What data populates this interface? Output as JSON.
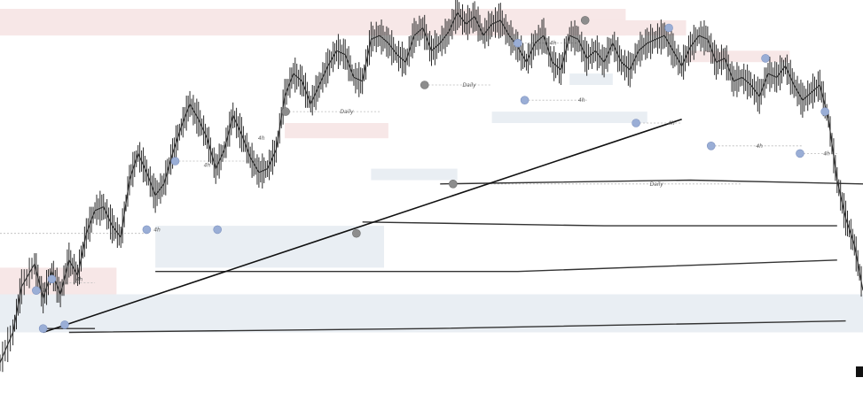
{
  "chart_data": {
    "type": "line",
    "title": "",
    "xlabel": "",
    "ylabel": "",
    "xlim": [
      0,
      100
    ],
    "ylim": [
      0,
      100
    ],
    "grid": false,
    "legend": "none",
    "colors": {
      "price": "#2b2b2b",
      "trendline": "#111111",
      "level": "#333333",
      "pivot_blue": "#9aaed6",
      "pivot_gray": "#8d8d8d",
      "zone_blue": "#e9eef3",
      "zone_red": "#f7e7e7",
      "guide": "#bbbbbb"
    },
    "price": {
      "x": [
        0,
        1.5,
        2.5,
        4,
        5,
        6,
        7,
        8,
        9,
        10,
        11,
        12,
        13,
        14,
        15,
        16,
        17,
        18,
        19,
        20,
        21,
        22,
        23,
        24,
        25,
        26,
        27,
        28,
        29,
        30,
        31,
        32,
        33,
        34,
        35,
        36,
        37,
        38,
        39,
        40,
        41,
        42,
        43,
        44,
        45,
        46,
        47,
        48,
        49,
        50,
        51,
        52,
        53,
        54,
        55,
        56,
        57,
        58,
        59,
        60,
        61,
        62,
        63,
        64,
        65,
        66,
        67,
        68,
        69,
        70,
        71,
        72,
        73,
        74,
        75,
        76,
        77,
        78,
        79,
        80,
        81,
        82,
        83,
        84,
        85,
        86,
        87,
        88,
        89,
        90,
        91,
        92,
        93,
        94,
        95,
        96,
        97,
        98,
        99,
        100
      ],
      "y": [
        7,
        15,
        27,
        33,
        24,
        31,
        25,
        34,
        30,
        41,
        47,
        48,
        43,
        40,
        55,
        62,
        57,
        51,
        54,
        62,
        69,
        75,
        71,
        66,
        58,
        63,
        72,
        67,
        61,
        57,
        58,
        63,
        77,
        83,
        81,
        75,
        80,
        85,
        89,
        88,
        82,
        81,
        92,
        93,
        91,
        88,
        86,
        93,
        95,
        89,
        91,
        94,
        99,
        96,
        98,
        93,
        96,
        97,
        93,
        90,
        86,
        91,
        93,
        86,
        84,
        93,
        92,
        87,
        89,
        86,
        91,
        86,
        84,
        89,
        91,
        92,
        93,
        89,
        85,
        90,
        93,
        92,
        86,
        87,
        81,
        82,
        80,
        77,
        83,
        82,
        85,
        80,
        76,
        78,
        80,
        71,
        55,
        45,
        38,
        26
      ]
    },
    "trendline": {
      "x": [
        5,
        79
      ],
      "y": [
        15,
        71
      ]
    },
    "levels": [
      {
        "x": [
          5,
          11
        ],
        "y": [
          16,
          16
        ]
      },
      {
        "x": [
          8,
          50,
          98
        ],
        "y": [
          15,
          16,
          18
        ]
      },
      {
        "x": [
          18,
          60,
          97
        ],
        "y": [
          31,
          31,
          34
        ]
      },
      {
        "x": [
          42,
          70,
          97
        ],
        "y": [
          44,
          43,
          43
        ]
      },
      {
        "x": [
          51,
          80,
          100
        ],
        "y": [
          54,
          55,
          54
        ]
      }
    ],
    "pivots": [
      {
        "x": 4.2,
        "y": 26,
        "color": "blue"
      },
      {
        "x": 6,
        "y": 29,
        "color": "blue"
      },
      {
        "x": 5,
        "y": 16,
        "color": "blue"
      },
      {
        "x": 7.5,
        "y": 17,
        "color": "blue"
      },
      {
        "x": 17,
        "y": 42,
        "color": "blue"
      },
      {
        "x": 20.3,
        "y": 60,
        "color": "blue"
      },
      {
        "x": 25.2,
        "y": 42,
        "color": "blue"
      },
      {
        "x": 33.1,
        "y": 73,
        "color": "gray"
      },
      {
        "x": 41.3,
        "y": 41,
        "color": "gray"
      },
      {
        "x": 49.2,
        "y": 80,
        "color": "gray"
      },
      {
        "x": 52.5,
        "y": 54,
        "color": "gray"
      },
      {
        "x": 60,
        "y": 91,
        "color": "blue"
      },
      {
        "x": 60.8,
        "y": 76,
        "color": "blue"
      },
      {
        "x": 67.8,
        "y": 97,
        "color": "gray"
      },
      {
        "x": 73.7,
        "y": 70,
        "color": "blue"
      },
      {
        "x": 77.5,
        "y": 95,
        "color": "blue"
      },
      {
        "x": 82.4,
        "y": 64,
        "color": "blue"
      },
      {
        "x": 88.7,
        "y": 87,
        "color": "blue"
      },
      {
        "x": 92.7,
        "y": 62,
        "color": "blue"
      },
      {
        "x": 95.6,
        "y": 73,
        "color": "blue"
      }
    ],
    "zones": [
      {
        "x": [
          0,
          72.5
        ],
        "y": [
          93,
          100
        ],
        "color": "red"
      },
      {
        "x": [
          0,
          13.5
        ],
        "y": [
          18,
          32
        ],
        "color": "red"
      },
      {
        "x": [
          0,
          100
        ],
        "y": [
          15,
          25
        ],
        "color": "blue"
      },
      {
        "x": [
          18,
          44.5
        ],
        "y": [
          32,
          43
        ],
        "color": "blue"
      },
      {
        "x": [
          33,
          45
        ],
        "y": [
          66,
          70
        ],
        "color": "red"
      },
      {
        "x": [
          43,
          53
        ],
        "y": [
          55,
          58
        ],
        "color": "blue"
      },
      {
        "x": [
          57,
          75
        ],
        "y": [
          70,
          73
        ],
        "color": "blue"
      },
      {
        "x": [
          66,
          79.5
        ],
        "y": [
          93,
          97
        ],
        "color": "red"
      },
      {
        "x": [
          79.5,
          91.5
        ],
        "y": [
          86,
          89
        ],
        "color": "red"
      },
      {
        "x": [
          66,
          71
        ],
        "y": [
          80,
          83
        ],
        "color": "blue"
      }
    ],
    "guides": [
      {
        "x": [
          0,
          17
        ],
        "y": [
          41,
          41
        ]
      },
      {
        "x": [
          6,
          11
        ],
        "y": [
          28,
          28
        ]
      },
      {
        "x": [
          20.3,
          32
        ],
        "y": [
          60,
          60
        ]
      },
      {
        "x": [
          33.1,
          44
        ],
        "y": [
          73,
          73
        ]
      },
      {
        "x": [
          49.2,
          57
        ],
        "y": [
          80,
          80
        ]
      },
      {
        "x": [
          60,
          67
        ],
        "y": [
          91,
          91
        ]
      },
      {
        "x": [
          60.8,
          68
        ],
        "y": [
          76,
          76
        ]
      },
      {
        "x": [
          73.7,
          79
        ],
        "y": [
          70,
          70
        ]
      },
      {
        "x": [
          82.4,
          93
        ],
        "y": [
          64,
          64
        ]
      },
      {
        "x": [
          92.7,
          97
        ],
        "y": [
          62,
          62
        ]
      },
      {
        "x": [
          56,
          86
        ],
        "y": [
          54,
          54
        ]
      }
    ],
    "annotations": [
      {
        "text": "4h",
        "x": 4.9,
        "y": 26
      },
      {
        "text": "4h",
        "x": 8.8,
        "y": 29
      },
      {
        "text": "4h",
        "x": 17.8,
        "y": 42
      },
      {
        "text": "4h",
        "x": 23.6,
        "y": 59
      },
      {
        "text": "4h",
        "x": 29.9,
        "y": 66
      },
      {
        "text": "Daily",
        "x": 39.4,
        "y": 73
      },
      {
        "text": "Daily",
        "x": 53.6,
        "y": 80
      },
      {
        "text": "4h",
        "x": 63.7,
        "y": 91
      },
      {
        "text": "4h",
        "x": 67,
        "y": 76
      },
      {
        "text": "4h",
        "x": 77.4,
        "y": 70
      },
      {
        "text": "4h",
        "x": 87.6,
        "y": 64
      },
      {
        "text": "4h",
        "x": 95.4,
        "y": 62
      },
      {
        "text": "Daily",
        "x": 75.3,
        "y": 54
      }
    ]
  }
}
